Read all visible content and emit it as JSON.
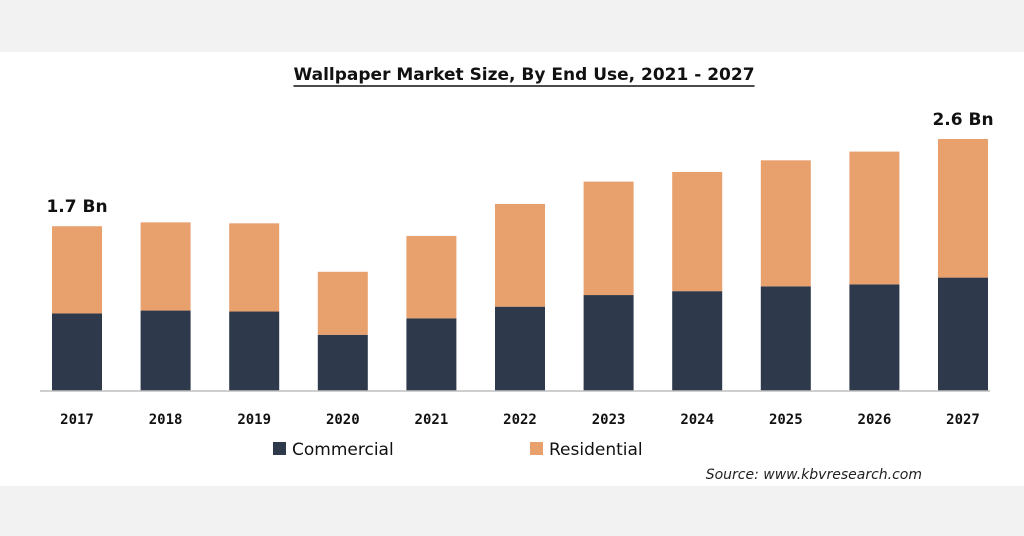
{
  "chart_data": {
    "type": "bar",
    "stacked": true,
    "title": "Wallpaper Market Size, By End Use, 2021 - 2027",
    "xlabel": "",
    "ylabel": "",
    "categories": [
      "2017",
      "2018",
      "2019",
      "2020",
      "2021",
      "2022",
      "2023",
      "2024",
      "2025",
      "2026",
      "2027"
    ],
    "series": [
      {
        "name": "Commercial",
        "color": "#2e3a4b",
        "values": [
          0.8,
          0.83,
          0.82,
          0.58,
          0.75,
          0.87,
          0.99,
          1.03,
          1.08,
          1.1,
          1.17
        ]
      },
      {
        "name": "Residential",
        "color": "#e8a06d",
        "values": [
          0.9,
          0.91,
          0.91,
          0.65,
          0.85,
          1.06,
          1.17,
          1.23,
          1.3,
          1.37,
          1.43
        ]
      }
    ],
    "annotations": [
      {
        "category": "2017",
        "text": "1.7 Bn"
      },
      {
        "category": "2027",
        "text": "2.6 Bn"
      }
    ],
    "ylim": [
      0,
      2.6
    ],
    "grid": false,
    "legend": "bottom"
  },
  "source": "Source: www.kbvresearch.com"
}
